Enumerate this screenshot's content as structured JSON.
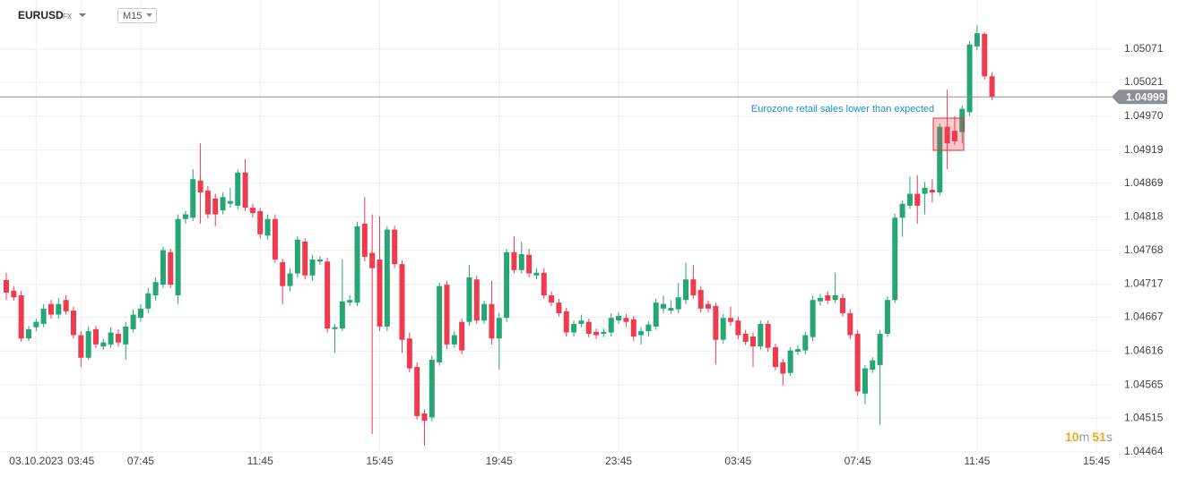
{
  "header": {
    "symbol": "EURUSD",
    "market": "FX",
    "interval": "M15"
  },
  "chart_data": {
    "type": "candlestick",
    "annotation": "Eurozone retail sales lower than expected",
    "current_price": 1.04999,
    "countdown": {
      "minutes": 10,
      "minutes_unit": "m",
      "seconds": 51,
      "seconds_unit": "s"
    },
    "colors": {
      "up": "#26a672",
      "down": "#f03a50"
    },
    "grid": true,
    "ylim": [
      1.0446,
      1.05145
    ],
    "yticks": [
      1.05071,
      1.05021,
      {
        "value": 1.0497,
        "label": "1.04970"
      },
      1.04919,
      1.04869,
      1.04818,
      1.04768,
      1.04717,
      1.04667,
      1.04616,
      1.04565,
      1.04515,
      1.04464
    ],
    "categories": [
      null,
      null,
      null,
      null,
      "03.10.2023",
      null,
      null,
      null,
      null,
      null,
      "03:45",
      null,
      null,
      null,
      null,
      null,
      null,
      null,
      "07:45",
      null,
      null,
      null,
      null,
      null,
      null,
      null,
      null,
      null,
      null,
      null,
      null,
      null,
      null,
      null,
      "11:45",
      null,
      null,
      null,
      null,
      null,
      null,
      null,
      null,
      null,
      null,
      null,
      null,
      null,
      null,
      null,
      "15:45",
      null,
      null,
      null,
      null,
      null,
      null,
      null,
      null,
      null,
      null,
      null,
      null,
      null,
      null,
      null,
      "19:45",
      null,
      null,
      null,
      null,
      null,
      null,
      null,
      null,
      null,
      null,
      null,
      null,
      null,
      null,
      null,
      "23:45",
      null,
      null,
      null,
      null,
      null,
      null,
      null,
      null,
      null,
      null,
      null,
      null,
      null,
      null,
      null,
      "03:45",
      null,
      null,
      null,
      null,
      null,
      null,
      null,
      null,
      null,
      null,
      null,
      null,
      null,
      null,
      null,
      "07:45",
      null,
      null,
      null,
      null,
      null,
      null,
      null,
      null,
      null,
      null,
      null,
      null,
      null,
      null,
      null,
      "11:45",
      null,
      null,
      null,
      null,
      null,
      null,
      null,
      null,
      null,
      null,
      null,
      null,
      null,
      null,
      null,
      "15:45",
      null,
      null,
      null
    ],
    "open": [
      1.04723,
      1.04707,
      1.047,
      1.04635,
      1.04652,
      1.04657,
      1.04687,
      1.04671,
      1.04693,
      1.04677,
      1.0464,
      1.04606,
      1.04649,
      1.04623,
      1.04626,
      1.04642,
      1.04626,
      1.04649,
      1.04666,
      1.0468,
      1.047,
      1.04716,
      1.04765,
      1.047,
      1.04815,
      1.04817,
      1.04873,
      1.04858,
      1.04846,
      1.04828,
      1.04838,
      1.04835,
      1.04885,
      1.04832,
      1.04827,
      1.0479,
      1.04815,
      1.0475,
      1.04714,
      1.04733,
      1.04781,
      1.0473,
      1.04751,
      1.04751,
      1.04649,
      1.0465,
      1.04689,
      1.04689,
      1.04808,
      1.04764,
      1.04754,
      1.04653,
      1.04799,
      1.04747,
      1.04635,
      1.04592,
      1.04522,
      1.04516,
      1.04599,
      1.04716,
      1.04626,
      1.0466,
      1.0466,
      1.04724,
      1.04662,
      1.04687,
      1.04635,
      1.04666,
      1.04765,
      1.04738,
      1.04761,
      1.0473,
      1.04734,
      1.047,
      1.04689,
      1.04676,
      1.04644,
      1.04657,
      1.0466,
      1.04645,
      1.04642,
      1.04644,
      1.04662,
      1.04666,
      1.04664,
      1.0464,
      1.04646,
      1.04653,
      1.0468,
      1.04677,
      1.04679,
      1.04693,
      1.04724,
      1.04708,
      1.04687,
      1.04684,
      1.04633,
      1.04666,
      1.04662,
      1.04642,
      1.04638,
      1.04623,
      1.04657,
      1.04622,
      1.04599,
      1.04583,
      1.04615,
      1.04617,
      1.04637,
      1.04691,
      1.047,
      1.04693,
      1.04696,
      1.04673,
      1.04642,
      1.04552,
      1.04588,
      1.04595,
      1.04642,
      1.04693,
      1.04817,
      1.04835,
      1.04853,
      1.04853,
      1.04859,
      1.04855,
      1.04954,
      1.04948,
      1.04946,
      1.04976,
      1.05075,
      1.05094,
      1.0503,
      null,
      null,
      null,
      null,
      null,
      null,
      null,
      null,
      null,
      null,
      null,
      null,
      null,
      null,
      null,
      null,
      null
    ],
    "high": [
      1.04734,
      1.04714,
      1.04707,
      1.04654,
      1.04665,
      1.04687,
      1.04693,
      1.04696,
      1.047,
      1.04683,
      1.04646,
      1.04653,
      1.04654,
      1.04635,
      1.04652,
      1.04649,
      1.0466,
      1.04679,
      1.04687,
      1.04711,
      1.04727,
      1.04773,
      1.0477,
      1.04822,
      1.04827,
      1.0489,
      1.04929,
      1.04865,
      1.04853,
      1.04855,
      1.04862,
      1.0489,
      1.04905,
      1.04838,
      1.04832,
      1.04822,
      1.04822,
      1.04755,
      1.04741,
      1.04789,
      1.04786,
      1.04761,
      1.04759,
      1.04757,
      1.04657,
      1.04754,
      1.047,
      1.04811,
      1.04848,
      1.04822,
      1.04819,
      1.04804,
      1.04805,
      1.04753,
      1.04644,
      1.04599,
      1.04528,
      1.04609,
      1.04719,
      1.04722,
      1.04646,
      1.04665,
      1.04746,
      1.0473,
      1.04692,
      1.04722,
      1.04673,
      1.0477,
      1.04789,
      1.04781,
      1.0477,
      1.04741,
      1.04741,
      1.04706,
      1.04695,
      1.04681,
      1.04662,
      1.04671,
      1.04665,
      1.0465,
      1.0465,
      1.04673,
      1.04674,
      1.04672,
      1.04669,
      1.04652,
      1.04661,
      1.04695,
      1.047,
      1.04693,
      1.04719,
      1.04749,
      1.04746,
      1.04714,
      1.04692,
      1.04689,
      1.04672,
      1.04683,
      1.04668,
      1.04648,
      1.04644,
      1.04662,
      1.04662,
      1.04627,
      1.04604,
      1.04622,
      1.04625,
      1.04645,
      1.04699,
      1.04702,
      1.04706,
      1.04734,
      1.04702,
      1.04679,
      1.04648,
      1.04595,
      1.04607,
      1.04648,
      1.04699,
      1.04823,
      1.04843,
      1.04879,
      1.04881,
      1.04871,
      1.04875,
      1.04959,
      1.0501,
      1.0497,
      1.04986,
      1.05083,
      1.05107,
      1.05096,
      1.05036,
      null,
      null,
      null,
      null,
      null,
      null,
      null,
      null,
      null,
      null,
      null,
      null,
      null,
      null,
      null,
      null,
      null
    ],
    "low": [
      1.04693,
      1.04692,
      1.0463,
      1.04631,
      1.04646,
      1.04652,
      1.04665,
      1.04665,
      1.04671,
      1.04635,
      1.04592,
      1.04603,
      1.04621,
      1.04618,
      1.04621,
      1.04623,
      1.04603,
      1.04644,
      1.0466,
      1.04673,
      1.04692,
      1.04711,
      1.04711,
      1.04687,
      1.04808,
      1.04812,
      1.04808,
      1.04816,
      1.04804,
      1.04822,
      1.04832,
      1.0483,
      1.04827,
      1.04817,
      1.04786,
      1.04784,
      1.04749,
      1.04687,
      1.04706,
      1.04727,
      1.04724,
      1.04722,
      1.04746,
      1.04644,
      1.04613,
      1.04646,
      1.04684,
      1.04684,
      1.04751,
      1.04491,
      1.04646,
      1.04646,
      1.04741,
      1.04613,
      1.04584,
      1.04513,
      1.04474,
      1.0451,
      1.04594,
      1.04619,
      1.04621,
      1.04611,
      1.04654,
      1.04657,
      1.04657,
      1.04626,
      1.04588,
      1.0466,
      1.04733,
      1.04733,
      1.04727,
      1.04724,
      1.04695,
      1.04684,
      1.04668,
      1.04638,
      1.04638,
      1.04652,
      1.04637,
      1.04634,
      1.04637,
      1.04638,
      1.04657,
      1.04652,
      1.04631,
      1.04626,
      1.04638,
      1.04648,
      1.04674,
      1.04672,
      1.04673,
      1.04687,
      1.04695,
      1.04674,
      1.04674,
      1.04596,
      1.04627,
      1.04654,
      1.04634,
      1.04625,
      1.04592,
      1.04618,
      1.04615,
      1.04587,
      1.04564,
      1.04578,
      1.0461,
      1.04611,
      1.04631,
      1.04685,
      1.04687,
      1.04688,
      1.04668,
      1.04634,
      1.04549,
      1.04536,
      1.04583,
      1.04505,
      1.04637,
      1.04688,
      1.04788,
      1.0483,
      1.04808,
      1.04822,
      1.0484,
      1.0485,
      1.0489,
      1.04927,
      1.04929,
      1.0497,
      1.05069,
      1.05025,
      1.04994,
      null,
      null,
      null,
      null,
      null,
      null,
      null,
      null,
      null,
      null,
      null,
      null,
      null,
      null,
      null,
      null,
      null
    ],
    "close": [
      1.04704,
      1.04697,
      1.04635,
      1.04649,
      1.0466,
      1.0468,
      1.04671,
      1.04687,
      1.04676,
      1.0464,
      1.04606,
      1.04646,
      1.04626,
      1.04629,
      1.04644,
      1.04629,
      1.04653,
      1.04671,
      1.0468,
      1.04703,
      1.0472,
      1.04768,
      1.04716,
      1.04815,
      1.04822,
      1.04875,
      1.04855,
      1.04822,
      1.04822,
      1.04848,
      1.04842,
      1.04885,
      1.04832,
      1.04824,
      1.04792,
      1.04815,
      1.04754,
      1.04714,
      1.04733,
      1.04784,
      1.0473,
      1.04754,
      1.04754,
      1.0465,
      1.04652,
      1.04691,
      1.04693,
      1.04804,
      1.04758,
      1.04741,
      1.04653,
      1.04799,
      1.04747,
      1.04633,
      1.0459,
      1.04518,
      1.04511,
      1.04603,
      1.04714,
      1.04626,
      1.0464,
      1.04617,
      1.04727,
      1.04662,
      1.04687,
      1.04635,
      1.04666,
      1.04765,
      1.04738,
      1.04762,
      1.04733,
      1.04734,
      1.047,
      1.04689,
      1.04673,
      1.04644,
      1.04657,
      1.04662,
      1.04642,
      1.0464,
      1.04645,
      1.04666,
      1.04669,
      1.0466,
      1.04638,
      1.04646,
      1.04656,
      1.04689,
      1.04687,
      1.04681,
      1.04697,
      1.04724,
      1.047,
      1.0468,
      1.0468,
      1.04633,
      1.04666,
      1.0466,
      1.0464,
      1.0463,
      1.04623,
      1.04657,
      1.04621,
      1.04592,
      1.04582,
      1.04617,
      1.04619,
      1.0464,
      1.04693,
      1.04696,
      1.04692,
      1.047,
      1.04673,
      1.0464,
      1.04555,
      1.0459,
      1.04602,
      1.04642,
      1.04693,
      1.04817,
      1.04838,
      1.04853,
      1.04835,
      1.04862,
      1.04855,
      1.04954,
      1.04929,
      1.04932,
      1.04981,
      1.05078,
      1.05095,
      1.0503,
      1.04999,
      null,
      null,
      null,
      null,
      null,
      null,
      null,
      null,
      null,
      null,
      null,
      null,
      null,
      null,
      null,
      null,
      null
    ]
  }
}
